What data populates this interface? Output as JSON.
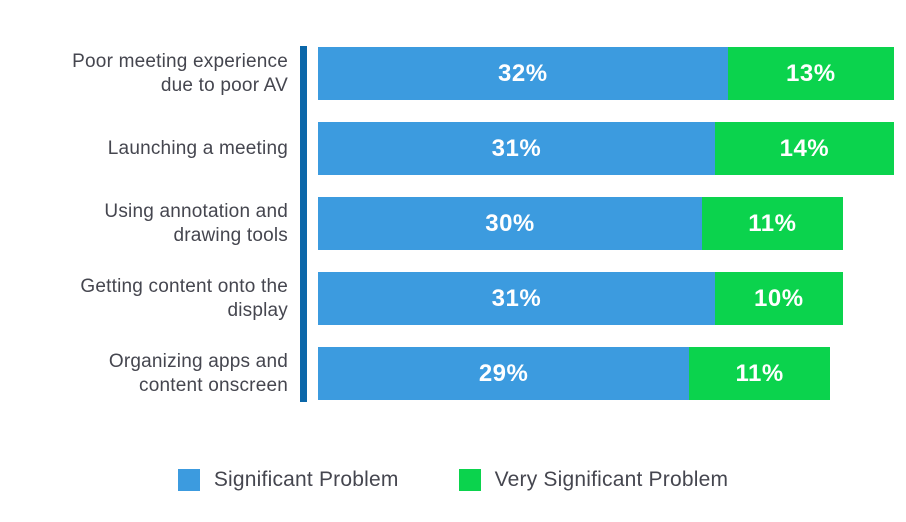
{
  "chart_data": {
    "type": "bar",
    "orientation": "horizontal",
    "stacked": true,
    "title": "",
    "categories": [
      "Poor meeting experience\ndue to poor AV",
      "Launching a meeting",
      "Using annotation and\ndrawing tools",
      "Getting content onto the\ndisplay",
      "Organizing apps and\ncontent onscreen"
    ],
    "series": [
      {
        "name": "Significant Problem",
        "color": "#3C9BDF",
        "values": [
          32,
          31,
          30,
          31,
          29
        ],
        "labels": [
          "32%",
          "31%",
          "30%",
          "31%",
          "29%"
        ]
      },
      {
        "name": "Very Significant Problem",
        "color": "#0BD34D",
        "values": [
          13,
          14,
          11,
          10,
          11
        ],
        "labels": [
          "13%",
          "14%",
          "11%",
          "10%",
          "11%"
        ]
      }
    ],
    "xlim": [
      0,
      45
    ],
    "grid": false,
    "legend_position": "bottom",
    "axis_line_color": "#0B67A9",
    "value_label_color": "#FFFFFF",
    "category_label_color": "#45464F"
  },
  "legend": {
    "items": [
      {
        "label": "Significant Problem",
        "color": "#3C9BDF"
      },
      {
        "label": "Very Significant Problem",
        "color": "#0BD34D"
      }
    ]
  }
}
